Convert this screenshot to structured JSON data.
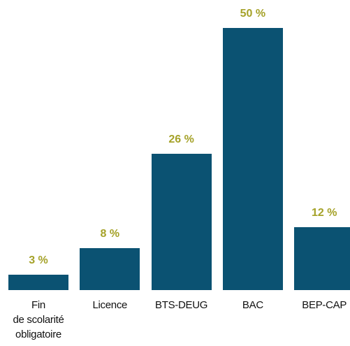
{
  "chart_data": {
    "type": "bar",
    "categories": [
      "Fin\nde scolarité\nobligatoire",
      "Licence",
      "BTS-DEUG",
      "BAC",
      "BEP-CAP"
    ],
    "values": [
      3,
      8,
      26,
      50,
      12
    ],
    "value_labels": [
      "3 %",
      "8 %",
      "26 %",
      "50 %",
      "12 %"
    ],
    "color": "#0b5272",
    "label_color": "#a5a229"
  }
}
